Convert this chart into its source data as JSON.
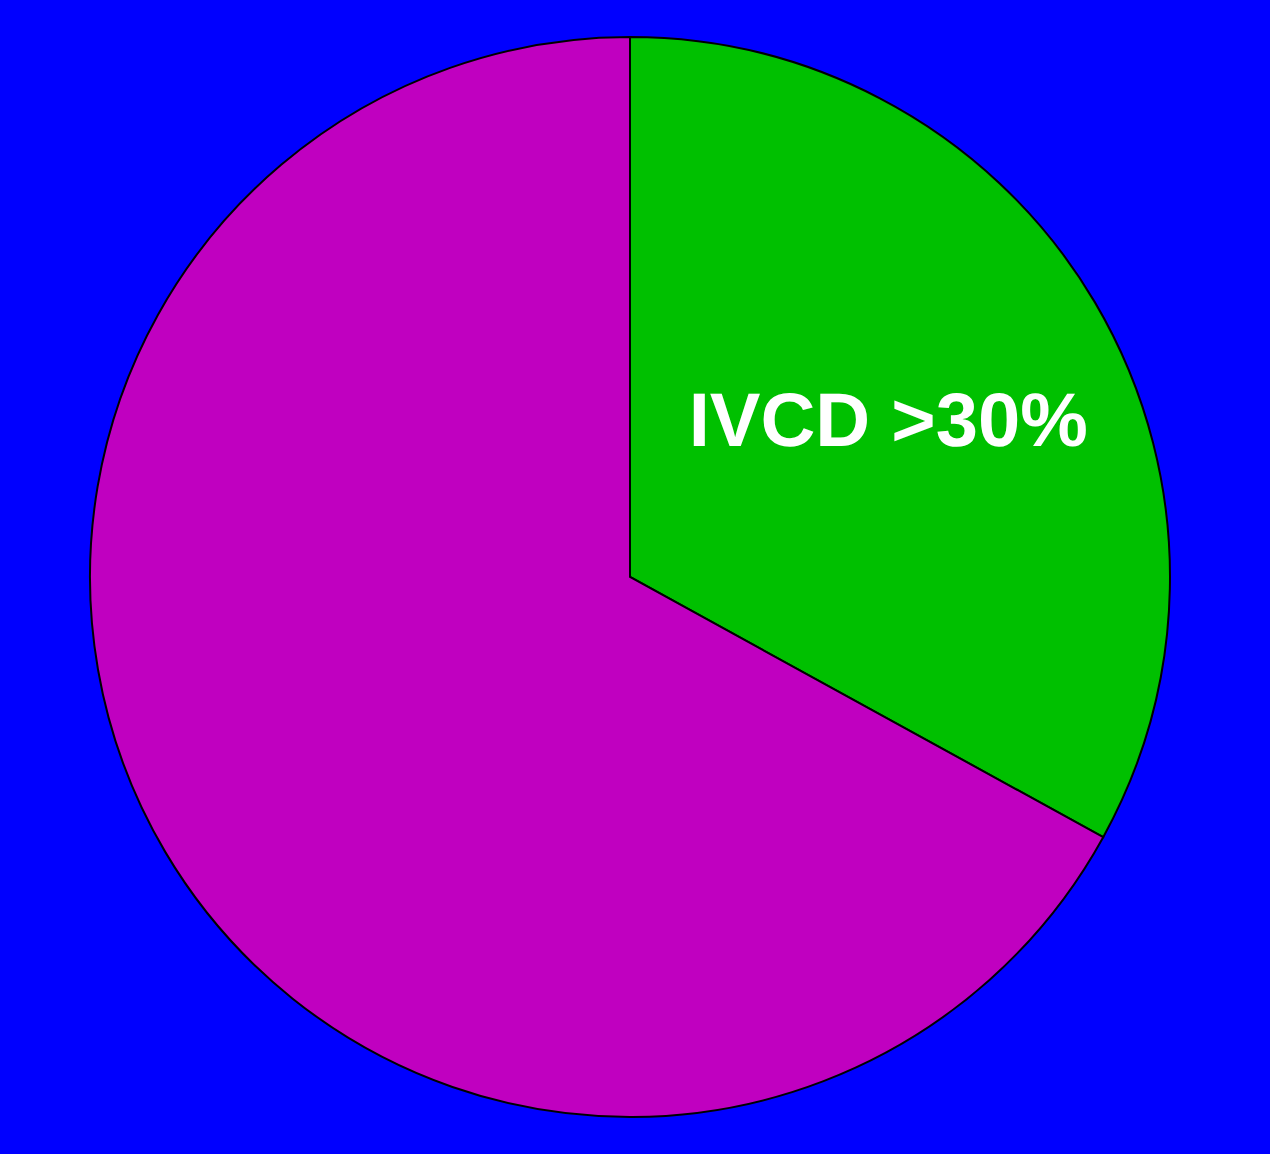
{
  "chart_data": {
    "type": "pie",
    "categories": [
      "IVCD >30%",
      null
    ],
    "values": [
      33,
      67
    ],
    "colors": [
      "#00c000",
      "#c000c0"
    ],
    "legend": false
  }
}
